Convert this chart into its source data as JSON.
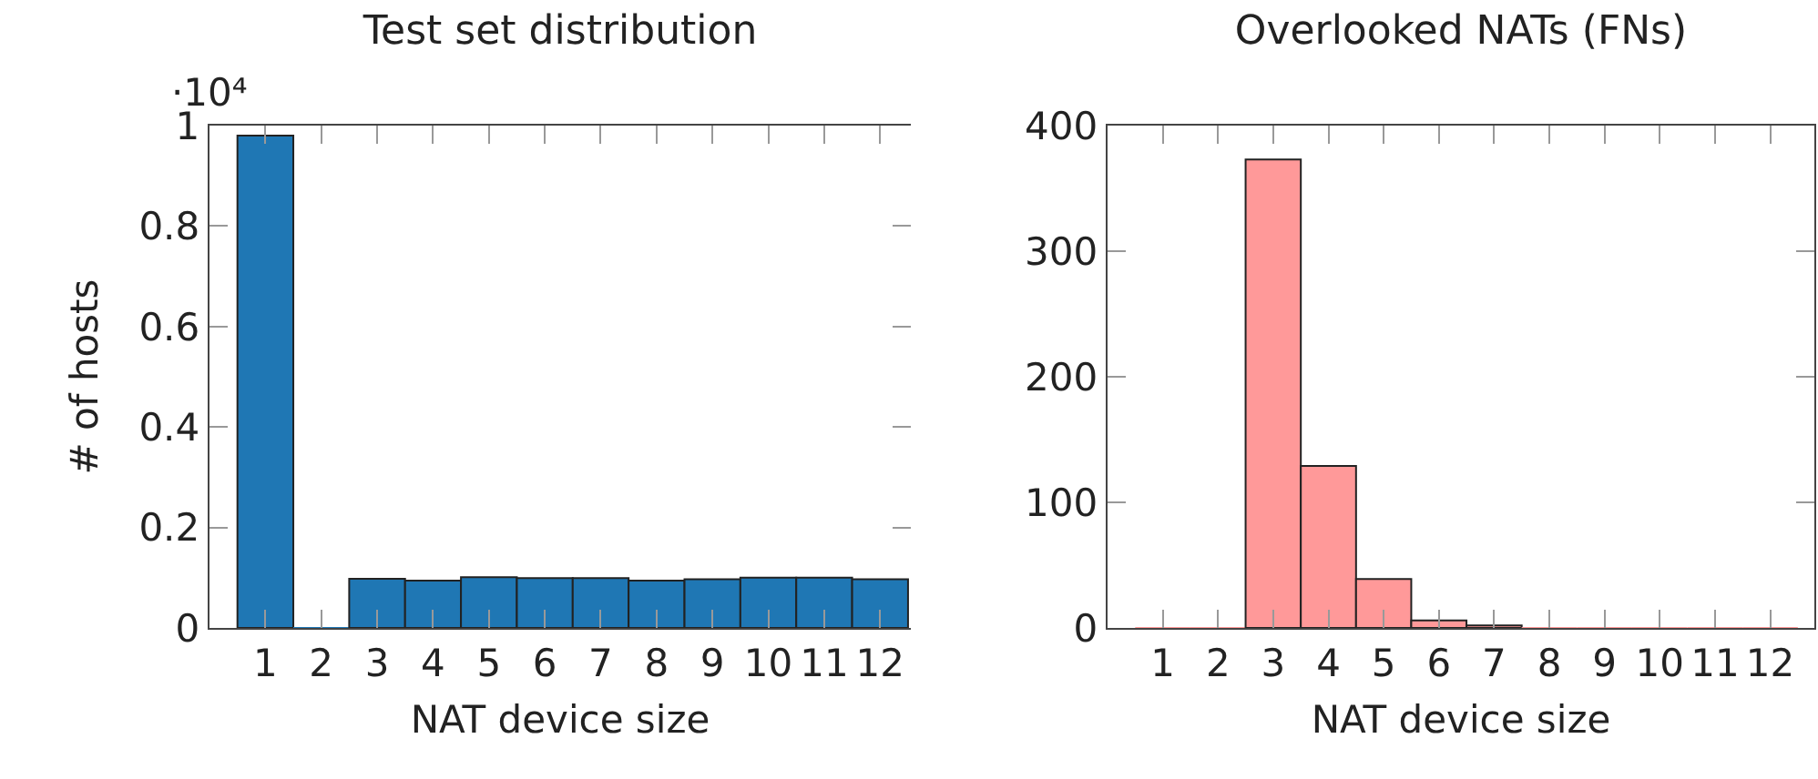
{
  "chart_data": [
    {
      "type": "bar",
      "title": "Test set distribution",
      "xlabel": "NAT device size",
      "ylabel": "# of hosts",
      "annotations": [
        "·10⁴"
      ],
      "x": [
        1,
        2,
        3,
        4,
        5,
        6,
        7,
        8,
        9,
        10,
        11,
        12
      ],
      "values": [
        0.98,
        0,
        0.098,
        0.094,
        0.101,
        0.099,
        0.099,
        0.094,
        0.097,
        0.1,
        0.1,
        0.097
      ],
      "color": "#1f77b4",
      "xlim": [
        0,
        12.55
      ],
      "xticks": [
        1,
        2,
        3,
        4,
        5,
        6,
        7,
        8,
        9,
        10,
        11,
        12
      ],
      "ylim": [
        0,
        1
      ],
      "yticks": [
        0,
        0.2,
        0.4,
        0.6,
        0.8,
        1
      ],
      "grid": false
    },
    {
      "type": "bar",
      "title": "Overlooked NATs (FNs)",
      "xlabel": "NAT device size",
      "x": [
        1,
        2,
        3,
        4,
        5,
        6,
        7,
        8,
        9,
        10,
        11,
        12
      ],
      "values": [
        0,
        0,
        373,
        129,
        39,
        6,
        2,
        0,
        0,
        0,
        0,
        0
      ],
      "color": "#ff9999",
      "xlim": [
        0,
        12.8
      ],
      "xticks": [
        1,
        2,
        3,
        4,
        5,
        6,
        7,
        8,
        9,
        10,
        11,
        12
      ],
      "ylim": [
        0,
        400
      ],
      "yticks": [
        0,
        100,
        200,
        300,
        400
      ],
      "grid": false
    }
  ]
}
